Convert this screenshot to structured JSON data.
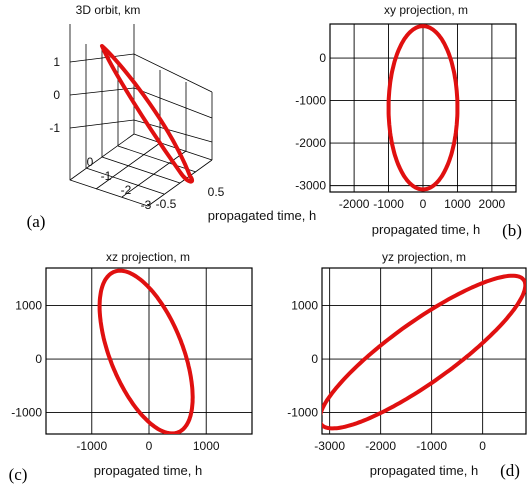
{
  "colors": {
    "orbit": "#e01010",
    "axes": "#000000",
    "background": "#ffffff"
  },
  "chart_data": [
    {
      "id": "a",
      "type": "line",
      "panel_label": "(a)",
      "title": "3D orbit, km",
      "xlabel": "propagated time, h",
      "z_ticks": [
        "1",
        "0",
        "-1"
      ],
      "y_ticks": [
        "0",
        "-1",
        "-2",
        "-3"
      ],
      "x_ticks": [
        "-0.5",
        "0.5"
      ],
      "grid": true
    },
    {
      "id": "b",
      "type": "line",
      "panel_label": "(b)",
      "title": "xy projection, m",
      "xlabel": "propagated time, h",
      "xlim": [
        -2700,
        2700
      ],
      "ylim": [
        -3150,
        800
      ],
      "x_ticks": [
        {
          "v": -2000,
          "label": "-2000"
        },
        {
          "v": -1000,
          "label": "-1000"
        },
        {
          "v": 0,
          "label": "0"
        },
        {
          "v": 1000,
          "label": "1000"
        },
        {
          "v": 2000,
          "label": "2000"
        }
      ],
      "y_ticks": [
        {
          "v": 0,
          "label": "0"
        },
        {
          "v": -1000,
          "label": "-1000"
        },
        {
          "v": -2000,
          "label": "-2000"
        },
        {
          "v": -3000,
          "label": "-3000"
        }
      ],
      "ellipse": {
        "cx": 0,
        "cy": -1170,
        "rx": 1000,
        "ry": 1920,
        "rotation_deg": 0
      },
      "grid": true
    },
    {
      "id": "c",
      "type": "line",
      "panel_label": "(c)",
      "title": "xz projection, m",
      "xlabel": "propagated time, h",
      "xlim": [
        -1800,
        1800
      ],
      "ylim": [
        -1400,
        1700
      ],
      "x_ticks": [
        {
          "v": -1000,
          "label": "-1000"
        },
        {
          "v": 0,
          "label": "0"
        },
        {
          "v": 1000,
          "label": "1000"
        }
      ],
      "y_ticks": [
        {
          "v": 1000,
          "label": "1000"
        },
        {
          "v": 0,
          "label": "0"
        },
        {
          "v": -1000,
          "label": "-1000"
        }
      ],
      "ellipse": {
        "cx": -50,
        "cy": 130,
        "rx": 640,
        "ry": 1600,
        "rotation_deg": 20
      },
      "grid": true
    },
    {
      "id": "d",
      "type": "line",
      "panel_label": "(d)",
      "title": "yz projection, m",
      "xlabel": "propagated time, h",
      "xlim": [
        -3150,
        850
      ],
      "ylim": [
        -1400,
        1700
      ],
      "x_ticks": [
        {
          "v": -3000,
          "label": "-3000"
        },
        {
          "v": -2000,
          "label": "-2000"
        },
        {
          "v": -1000,
          "label": "-1000"
        },
        {
          "v": 0,
          "label": "0"
        }
      ],
      "y_ticks": [
        {
          "v": 1000,
          "label": "1000"
        },
        {
          "v": 0,
          "label": "0"
        },
        {
          "v": -1000,
          "label": "-1000"
        }
      ],
      "ellipse": {
        "cx": -1180,
        "cy": 130,
        "rx": 2400,
        "ry": 580,
        "rotation_deg": 34
      },
      "grid": true
    }
  ]
}
